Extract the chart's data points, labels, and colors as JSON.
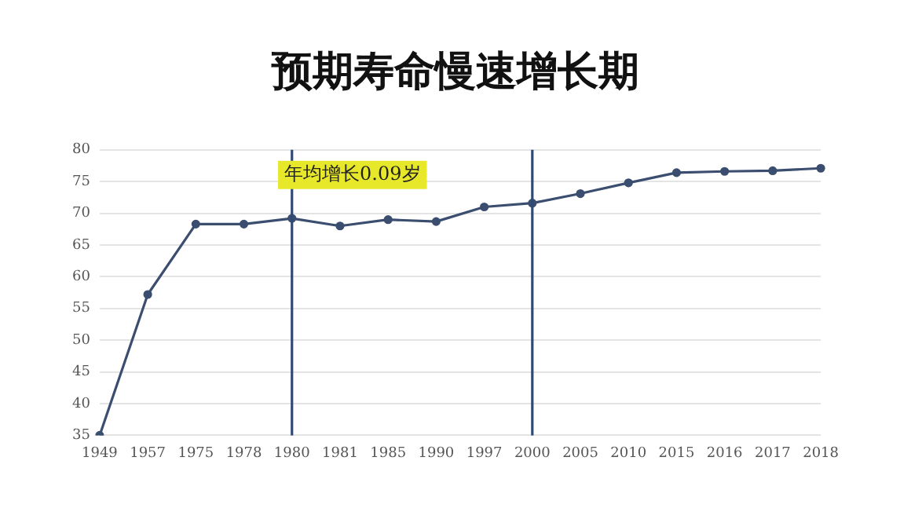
{
  "chart_data": {
    "type": "line",
    "title": "预期寿命慢速增长期",
    "categories": [
      "1949",
      "1957",
      "1975",
      "1978",
      "1980",
      "1981",
      "1985",
      "1990",
      "1997",
      "2000",
      "2005",
      "2010",
      "2015",
      "2016",
      "2017",
      "2018"
    ],
    "series": [
      {
        "color": "#3b4e70",
        "values": [
          35,
          57.2,
          68.3,
          68.3,
          69.2,
          68,
          69,
          68.7,
          71,
          71.6,
          73.1,
          74.8,
          76.4,
          76.6,
          76.7,
          77.1
        ]
      }
    ],
    "ylim": [
      35,
      80
    ],
    "yticks": [
      35,
      40,
      45,
      50,
      55,
      60,
      65,
      70,
      75,
      80
    ],
    "grid": "y",
    "legend": false,
    "marker": "circle",
    "line_style": "solid",
    "ref_lines": [
      {
        "axis": "x",
        "value": "1980",
        "color": "#2f4a73"
      },
      {
        "axis": "x",
        "value": "2000",
        "color": "#2f4a73"
      }
    ],
    "annotations": [
      "年均增长0.09岁"
    ]
  }
}
